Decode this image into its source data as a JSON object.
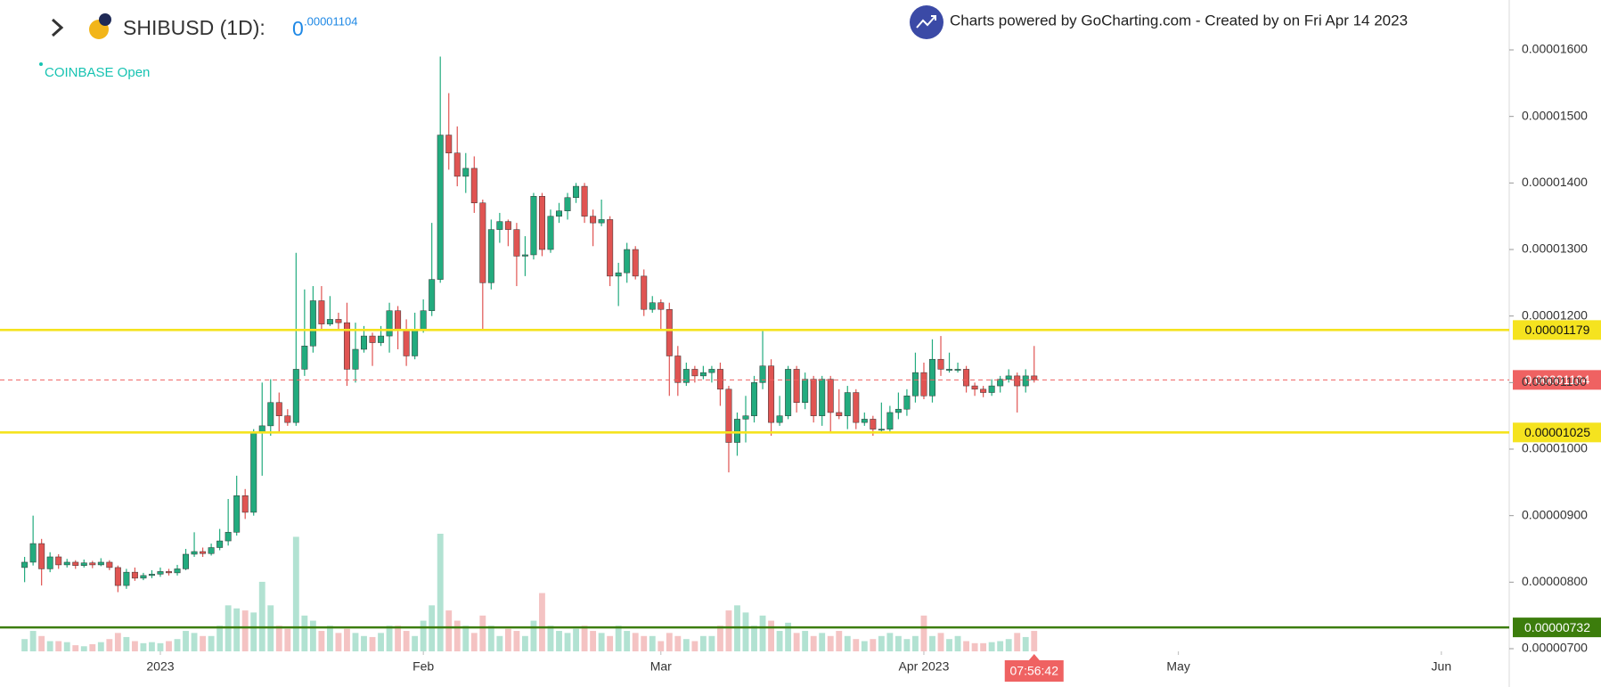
{
  "chart_data": {
    "type": "candlestick",
    "title": "SHIBUSD (1D):",
    "header_price": "0",
    "header_price_decimals": ".00001104",
    "exchange": "COINBASE Open",
    "attribution": "Charts powered by GoCharting.com - Created by  on Fri Apr 14 2023",
    "countdown": "07:56:42",
    "up_color": "#22ab7e",
    "down_color": "#e05452",
    "xlim": [
      -2.9,
      175
    ],
    "xticks": [
      {
        "value": 16,
        "label": "2023"
      },
      {
        "value": 47,
        "label": "Feb"
      },
      {
        "value": 75,
        "label": "Mar"
      },
      {
        "value": 106,
        "label": "Apr 2023"
      },
      {
        "value": 136,
        "label": "May"
      },
      {
        "value": 167,
        "label": "Jun"
      }
    ],
    "ylim": [
      6.96e-06,
      1.675e-05
    ],
    "yticks": [
      {
        "value": 7e-06,
        "label": "0.00000700"
      },
      {
        "value": 8e-06,
        "label": "0.00000800"
      },
      {
        "value": 9e-06,
        "label": "0.00000900"
      },
      {
        "value": 1e-05,
        "label": "0.00001000"
      },
      {
        "value": 1.1e-05,
        "label": "0.00001100"
      },
      {
        "value": 1.2e-05,
        "label": "0.00001200"
      },
      {
        "value": 1.3e-05,
        "label": "0.00001300"
      },
      {
        "value": 1.4e-05,
        "label": "0.00001400"
      },
      {
        "value": 1.5e-05,
        "label": "0.00001500"
      },
      {
        "value": 1.6e-05,
        "label": "0.00001600"
      }
    ],
    "grid": false,
    "hlines": [
      {
        "value": 1.179e-05,
        "label": "0.00001179",
        "color": "#f5e31f",
        "text_color": "#111111"
      },
      {
        "value": 1.025e-05,
        "label": "0.00001025",
        "color": "#f5e31f",
        "text_color": "#111111"
      },
      {
        "value": 7.32e-06,
        "label": "0.00000732",
        "color": "#3c7d0c",
        "text_color": "#ffffff"
      }
    ],
    "last_price": {
      "value": 1.104e-05,
      "label": "0.00001104",
      "color": "#ef6262",
      "text_color": "#ffffff"
    },
    "open": [
      8.22e-06,
      8.3e-06,
      8.58e-06,
      8.2e-06,
      8.38e-06,
      8.26e-06,
      8.3e-06,
      8.25e-06,
      8.29e-06,
      8.26e-06,
      8.3e-06,
      8.22e-06,
      7.95e-06,
      8.15e-06,
      8.06e-06,
      8.1e-06,
      8.12e-06,
      8.16e-06,
      8.14e-06,
      8.2e-06,
      8.42e-06,
      8.46e-06,
      8.43e-06,
      8.52e-06,
      8.62e-06,
      8.75e-06,
      9.3e-06,
      9.05e-06,
      1.026e-05,
      1.035e-05,
      1.07e-05,
      1.05e-05,
      1.04e-05,
      1.12e-05,
      1.155e-05,
      1.223e-05,
      1.188e-05,
      1.195e-05,
      1.19e-05,
      1.12e-05,
      1.15e-05,
      1.17e-05,
      1.16e-05,
      1.17e-05,
      1.208e-05,
      1.18e-05,
      1.14e-05,
      1.18e-05,
      1.208e-05,
      1.255e-05,
      1.472e-05,
      1.445e-05,
      1.41e-05,
      1.422e-05,
      1.37e-05,
      1.25e-05,
      1.33e-05,
      1.342e-05,
      1.33e-05,
      1.29e-05,
      1.292e-05,
      1.38e-05,
      1.3e-05,
      1.35e-05,
      1.358e-05,
      1.378e-05,
      1.395e-05,
      1.35e-05,
      1.34e-05,
      1.345e-05,
      1.26e-05,
      1.265e-05,
      1.3e-05,
      1.26e-05,
      1.21e-05,
      1.22e-05,
      1.21e-05,
      1.14e-05,
      1.1e-05,
      1.12e-05,
      1.11e-05,
      1.115e-05,
      1.12e-05,
      1.09e-05,
      1.01e-05,
      1.045e-05,
      1.05e-05,
      1.1e-05,
      1.125e-05,
      1.04e-05,
      1.05e-05,
      1.12e-05,
      1.07e-05,
      1.105e-05,
      1.05e-05,
      1.105e-05,
      1.055e-05,
      1.05e-05,
      1.085e-05,
      1.04e-05,
      1.045e-05,
      1.03e-05,
      1.03e-05,
      1.055e-05,
      1.06e-05,
      1.08e-05,
      1.115e-05,
      1.08e-05,
      1.135e-05,
      1.12e-05,
      1.12e-05,
      1.12e-05,
      1.095e-05,
      1.09e-05,
      1.085e-05,
      1.095e-05,
      1.105e-05,
      1.11e-05,
      1.095e-05,
      1.11e-05
    ],
    "high": [
      8.38e-06,
      9e-06,
      8.65e-06,
      8.45e-06,
      8.42e-06,
      8.35e-06,
      8.33e-06,
      8.34e-06,
      8.32e-06,
      8.36e-06,
      8.33e-06,
      8.25e-06,
      8.2e-06,
      8.22e-06,
      8.14e-06,
      8.18e-06,
      8.22e-06,
      8.2e-06,
      8.26e-06,
      8.5e-06,
      8.75e-06,
      8.52e-06,
      8.58e-06,
      8.8e-06,
      9.25e-06,
      9.6e-06,
      9.4e-06,
      1.03e-05,
      1.1e-05,
      1.105e-05,
      1.085e-05,
      1.06e-05,
      1.295e-05,
      1.24e-05,
      1.245e-05,
      1.245e-05,
      1.23e-05,
      1.205e-05,
      1.22e-05,
      1.19e-05,
      1.185e-05,
      1.175e-05,
      1.185e-05,
      1.22e-05,
      1.215e-05,
      1.195e-05,
      1.205e-05,
      1.225e-05,
      1.34e-05,
      1.59e-05,
      1.535e-05,
      1.485e-05,
      1.445e-05,
      1.44e-05,
      1.375e-05,
      1.345e-05,
      1.355e-05,
      1.345e-05,
      1.34e-05,
      1.32e-05,
      1.385e-05,
      1.385e-05,
      1.36e-05,
      1.37e-05,
      1.385e-05,
      1.4e-05,
      1.4e-05,
      1.36e-05,
      1.375e-05,
      1.35e-05,
      1.28e-05,
      1.31e-05,
      1.305e-05,
      1.27e-05,
      1.23e-05,
      1.225e-05,
      1.22e-05,
      1.155e-05,
      1.13e-05,
      1.125e-05,
      1.125e-05,
      1.125e-05,
      1.13e-05,
      1.095e-05,
      1.055e-05,
      1.08e-05,
      1.11e-05,
      1.178e-05,
      1.135e-05,
      1.08e-05,
      1.125e-05,
      1.125e-05,
      1.115e-05,
      1.11e-05,
      1.11e-05,
      1.11e-05,
      1.09e-05,
      1.095e-05,
      1.09e-05,
      1.055e-05,
      1.05e-05,
      1.07e-05,
      1.065e-05,
      1.085e-05,
      1.09e-05,
      1.145e-05,
      1.13e-05,
      1.165e-05,
      1.17e-05,
      1.145e-05,
      1.13e-05,
      1.125e-05,
      1.1e-05,
      1.095e-05,
      1.105e-05,
      1.11e-05,
      1.12e-05,
      1.115e-05,
      1.12e-05,
      1.155e-05
    ],
    "low": [
      8e-06,
      8.25e-06,
      7.95e-06,
      8.15e-06,
      8.2e-06,
      8.22e-06,
      8.2e-06,
      8.22e-06,
      8.21e-06,
      8.24e-06,
      8.18e-06,
      7.85e-06,
      7.9e-06,
      8.02e-06,
      8.03e-06,
      8.06e-06,
      8.08e-06,
      8.1e-06,
      8.1e-06,
      8.18e-06,
      8.38e-06,
      8.38e-06,
      8.4e-06,
      8.48e-06,
      8.55e-06,
      8.7e-06,
      8.95e-06,
      9e-06,
      9.6e-06,
      1.02e-05,
      1.025e-05,
      1.035e-05,
      1.035e-05,
      1.11e-05,
      1.145e-05,
      1.18e-05,
      1.185e-05,
      1.18e-05,
      1.095e-05,
      1.1e-05,
      1.145e-05,
      1.125e-05,
      1.155e-05,
      1.145e-05,
      1.15e-05,
      1.125e-05,
      1.135e-05,
      1.175e-05,
      1.2e-05,
      1.25e-05,
      1.42e-05,
      1.395e-05,
      1.385e-05,
      1.355e-05,
      1.18e-05,
      1.24e-05,
      1.31e-05,
      1.305e-05,
      1.245e-05,
      1.26e-05,
      1.285e-05,
      1.29e-05,
      1.295e-05,
      1.34e-05,
      1.345e-05,
      1.37e-05,
      1.34e-05,
      1.305e-05,
      1.335e-05,
      1.245e-05,
      1.215e-05,
      1.25e-05,
      1.255e-05,
      1.2e-05,
      1.205e-05,
      1.18e-05,
      1.08e-05,
      1.08e-05,
      1.095e-05,
      1.1e-05,
      1.105e-05,
      1.1e-05,
      1.065e-05,
      9.65e-06,
      9.9e-06,
      1.01e-05,
      1.04e-05,
      1.09e-05,
      1.02e-05,
      1.035e-05,
      1.045e-05,
      1.055e-05,
      1.06e-05,
      1.04e-05,
      1.035e-05,
      1.025e-05,
      1.045e-05,
      1.03e-05,
      1.03e-05,
      1.035e-05,
      1.02e-05,
      1.025e-05,
      1.025e-05,
      1.045e-05,
      1.05e-05,
      1.07e-05,
      1.075e-05,
      1.07e-05,
      1.11e-05,
      1.115e-05,
      1.115e-05,
      1.085e-05,
      1.08e-05,
      1.078e-05,
      1.08e-05,
      1.085e-05,
      1.1e-05,
      1.055e-05,
      1.085e-05,
      1.1e-05
    ],
    "close": [
      8.3e-06,
      8.58e-06,
      8.2e-06,
      8.38e-06,
      8.26e-06,
      8.3e-06,
      8.25e-06,
      8.29e-06,
      8.26e-06,
      8.3e-06,
      8.22e-06,
      7.95e-06,
      8.15e-06,
      8.06e-06,
      8.1e-06,
      8.12e-06,
      8.16e-06,
      8.14e-06,
      8.2e-06,
      8.42e-06,
      8.46e-06,
      8.43e-06,
      8.52e-06,
      8.62e-06,
      8.75e-06,
      9.3e-06,
      9.05e-06,
      1.026e-05,
      1.035e-05,
      1.07e-05,
      1.05e-05,
      1.04e-05,
      1.12e-05,
      1.155e-05,
      1.223e-05,
      1.188e-05,
      1.195e-05,
      1.19e-05,
      1.12e-05,
      1.15e-05,
      1.17e-05,
      1.16e-05,
      1.17e-05,
      1.208e-05,
      1.18e-05,
      1.14e-05,
      1.18e-05,
      1.208e-05,
      1.255e-05,
      1.472e-05,
      1.445e-05,
      1.41e-05,
      1.422e-05,
      1.37e-05,
      1.25e-05,
      1.33e-05,
      1.342e-05,
      1.33e-05,
      1.29e-05,
      1.292e-05,
      1.38e-05,
      1.3e-05,
      1.35e-05,
      1.358e-05,
      1.378e-05,
      1.395e-05,
      1.35e-05,
      1.34e-05,
      1.345e-05,
      1.26e-05,
      1.265e-05,
      1.3e-05,
      1.26e-05,
      1.21e-05,
      1.22e-05,
      1.21e-05,
      1.14e-05,
      1.1e-05,
      1.12e-05,
      1.11e-05,
      1.115e-05,
      1.12e-05,
      1.09e-05,
      1.01e-05,
      1.045e-05,
      1.05e-05,
      1.1e-05,
      1.125e-05,
      1.04e-05,
      1.05e-05,
      1.12e-05,
      1.07e-05,
      1.105e-05,
      1.05e-05,
      1.105e-05,
      1.055e-05,
      1.05e-05,
      1.085e-05,
      1.04e-05,
      1.045e-05,
      1.03e-05,
      1.03e-05,
      1.055e-05,
      1.06e-05,
      1.08e-05,
      1.115e-05,
      1.08e-05,
      1.135e-05,
      1.12e-05,
      1.12e-05,
      1.12e-05,
      1.095e-05,
      1.09e-05,
      1.085e-05,
      1.095e-05,
      1.105e-05,
      1.11e-05,
      1.095e-05,
      1.11e-05,
      1.104e-05
    ],
    "volume": [
      12,
      20,
      15,
      10,
      10,
      9,
      6,
      5,
      7,
      9,
      12,
      18,
      14,
      10,
      8,
      9,
      8,
      10,
      12,
      20,
      18,
      15,
      15,
      25,
      45,
      42,
      40,
      38,
      68,
      45,
      25,
      22,
      112,
      35,
      30,
      20,
      25,
      18,
      22,
      18,
      15,
      14,
      18,
      25,
      25,
      20,
      15,
      30,
      45,
      115,
      40,
      30,
      25,
      18,
      35,
      25,
      15,
      22,
      20,
      15,
      30,
      57,
      25,
      20,
      18,
      22,
      25,
      20,
      18,
      15,
      25,
      20,
      18,
      15,
      15,
      10,
      18,
      15,
      12,
      10,
      15,
      15,
      25,
      40,
      45,
      38,
      25,
      35,
      30,
      20,
      28,
      18,
      20,
      15,
      18,
      15,
      20,
      15,
      12,
      10,
      12,
      15,
      18,
      15,
      12,
      15,
      35,
      15,
      18,
      12,
      15,
      10,
      8,
      8,
      9,
      10,
      12,
      18,
      14,
      20
    ]
  }
}
